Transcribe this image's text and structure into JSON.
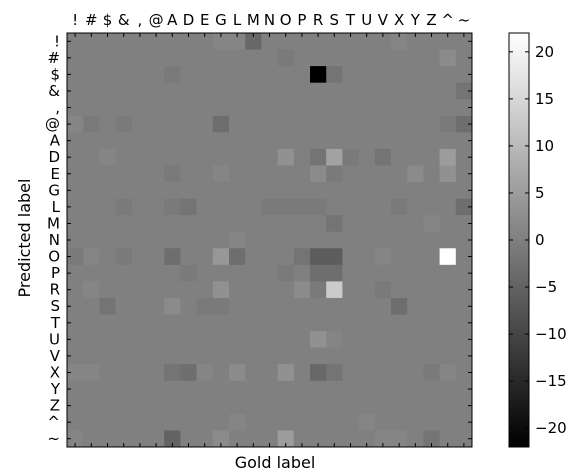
{
  "chart_data": {
    "type": "heatmap",
    "title": "",
    "xlabel": "Gold label",
    "ylabel": "Predicted label",
    "x_categories": [
      "!",
      "#",
      "$",
      "&",
      ",",
      "@",
      "A",
      "D",
      "E",
      "G",
      "L",
      "M",
      "N",
      "O",
      "P",
      "R",
      "S",
      "T",
      "U",
      "V",
      "X",
      "Y",
      "Z",
      "^",
      "~"
    ],
    "y_categories": [
      "!",
      "#",
      "$",
      "&",
      ",",
      "@",
      "A",
      "D",
      "E",
      "G",
      "L",
      "M",
      "N",
      "O",
      "P",
      "R",
      "S",
      "T",
      "U",
      "V",
      "X",
      "Y",
      "Z",
      "^",
      "~"
    ],
    "x_axis_position": "top",
    "colormap": "gray",
    "colorbar": {
      "min": -22,
      "max": 22,
      "ticks": [
        20,
        15,
        10,
        5,
        0,
        -5,
        -10,
        -15,
        -20
      ],
      "tick_labels": [
        "20",
        "15",
        "10",
        "5",
        "0",
        "−5",
        "−10",
        "−15",
        "−20"
      ]
    },
    "grid": false,
    "legend": "colorbar-right",
    "values": [
      [
        0,
        0,
        0,
        0,
        0,
        0,
        0,
        0,
        0,
        1,
        1,
        -4,
        0,
        0,
        0,
        0,
        0,
        0,
        0,
        0,
        1,
        0,
        0,
        0,
        0
      ],
      [
        0,
        0,
        0,
        0,
        0,
        0,
        0,
        0,
        0,
        0,
        0,
        0,
        0,
        -1,
        0,
        0,
        0,
        0,
        0,
        0,
        0,
        0,
        0,
        2,
        0
      ],
      [
        0,
        0,
        0,
        0,
        0,
        0,
        -1,
        0,
        0,
        0,
        0,
        0,
        0,
        0,
        0,
        -22,
        -2,
        0,
        0,
        0,
        0,
        0,
        0,
        0,
        0
      ],
      [
        0,
        0,
        0,
        0,
        0,
        0,
        0,
        0,
        0,
        0,
        0,
        0,
        0,
        0,
        0,
        0,
        0,
        0,
        0,
        0,
        0,
        0,
        0,
        0,
        -2
      ],
      [
        0,
        0,
        0,
        0,
        0,
        0,
        0,
        0,
        0,
        0,
        0,
        0,
        0,
        0,
        0,
        0,
        0,
        0,
        0,
        0,
        0,
        0,
        0,
        0,
        0
      ],
      [
        1,
        -1,
        0,
        -1,
        0,
        0,
        0,
        0,
        0,
        -3,
        0,
        0,
        0,
        0,
        0,
        0,
        0,
        0,
        0,
        0,
        0,
        0,
        0,
        -1,
        -3
      ],
      [
        0,
        0,
        0,
        0,
        0,
        0,
        0,
        0,
        0,
        0,
        0,
        0,
        0,
        0,
        0,
        0,
        0,
        0,
        0,
        0,
        0,
        0,
        0,
        0,
        0
      ],
      [
        0,
        0,
        1,
        0,
        0,
        0,
        0,
        0,
        0,
        0,
        0,
        0,
        0,
        3,
        0,
        -2,
        6,
        -1,
        0,
        -2,
        0,
        0,
        0,
        5,
        0
      ],
      [
        0,
        0,
        0,
        0,
        0,
        0,
        -1,
        0,
        0,
        1,
        0,
        0,
        0,
        0,
        0,
        2,
        -1,
        0,
        0,
        0,
        0,
        2,
        0,
        3,
        0
      ],
      [
        0,
        0,
        0,
        0,
        0,
        0,
        0,
        0,
        0,
        0,
        0,
        0,
        0,
        0,
        0,
        0,
        0,
        0,
        0,
        0,
        0,
        0,
        0,
        0,
        0
      ],
      [
        0,
        0,
        0,
        -1,
        0,
        0,
        -1,
        -2,
        0,
        0,
        0,
        0,
        -1,
        -1,
        -1,
        -1,
        0,
        0,
        0,
        0,
        -1,
        0,
        0,
        0,
        -3
      ],
      [
        0,
        0,
        0,
        0,
        0,
        0,
        0,
        0,
        0,
        0,
        0,
        0,
        0,
        0,
        0,
        0,
        -2,
        0,
        0,
        0,
        0,
        0,
        1,
        0,
        0
      ],
      [
        0,
        0,
        0,
        0,
        0,
        0,
        0,
        0,
        0,
        0,
        1,
        0,
        0,
        0,
        0,
        0,
        0,
        0,
        0,
        0,
        0,
        0,
        0,
        0,
        0
      ],
      [
        -1,
        1,
        0,
        -1,
        0,
        0,
        -3,
        0,
        0,
        4,
        -3,
        0,
        0,
        0,
        -2,
        -6,
        -6,
        0,
        0,
        1,
        0,
        0,
        0,
        22,
        0
      ],
      [
        0,
        0,
        0,
        0,
        0,
        0,
        0,
        -1,
        0,
        0,
        0,
        0,
        0,
        -1,
        0,
        -3,
        -3,
        0,
        0,
        0,
        0,
        0,
        0,
        0,
        0
      ],
      [
        0,
        1,
        0,
        0,
        0,
        0,
        0,
        0,
        0,
        3,
        0,
        0,
        0,
        0,
        2,
        -1,
        13,
        0,
        0,
        -1,
        0,
        0,
        0,
        0,
        0
      ],
      [
        0,
        0,
        -2,
        0,
        0,
        0,
        2,
        0,
        -1,
        -1,
        0,
        0,
        0,
        0,
        0,
        0,
        0,
        0,
        0,
        0,
        -3,
        0,
        0,
        0,
        0
      ],
      [
        0,
        0,
        0,
        0,
        0,
        0,
        0,
        0,
        0,
        0,
        0,
        0,
        0,
        0,
        0,
        0,
        0,
        0,
        0,
        0,
        0,
        0,
        0,
        0,
        0
      ],
      [
        0,
        0,
        0,
        0,
        0,
        0,
        0,
        0,
        0,
        0,
        0,
        0,
        0,
        0,
        0,
        3,
        1,
        0,
        0,
        0,
        0,
        0,
        0,
        0,
        0
      ],
      [
        0,
        0,
        0,
        0,
        0,
        0,
        0,
        0,
        0,
        0,
        0,
        0,
        0,
        0,
        0,
        0,
        0,
        0,
        0,
        0,
        0,
        0,
        0,
        0,
        0
      ],
      [
        1,
        1,
        0,
        0,
        0,
        0,
        -2,
        -3,
        1,
        0,
        2,
        0,
        0,
        3,
        0,
        -4,
        -2,
        0,
        0,
        0,
        0,
        0,
        -1,
        1,
        0
      ],
      [
        0,
        0,
        0,
        0,
        0,
        0,
        0,
        0,
        0,
        0,
        0,
        0,
        0,
        0,
        0,
        0,
        0,
        0,
        0,
        0,
        0,
        0,
        0,
        0,
        0
      ],
      [
        0,
        0,
        0,
        0,
        0,
        0,
        0,
        0,
        0,
        0,
        0,
        0,
        0,
        0,
        0,
        0,
        0,
        0,
        0,
        0,
        0,
        0,
        0,
        0,
        0
      ],
      [
        0,
        0,
        0,
        0,
        0,
        0,
        0,
        0,
        0,
        0,
        1,
        0,
        0,
        0,
        0,
        0,
        0,
        0,
        1,
        0,
        0,
        0,
        0,
        0,
        0
      ],
      [
        1,
        0,
        0,
        0,
        0,
        0,
        -5,
        0,
        0,
        2,
        0,
        0,
        0,
        5,
        0,
        0,
        0,
        0,
        0,
        1,
        1,
        0,
        -2,
        0,
        0
      ]
    ]
  }
}
